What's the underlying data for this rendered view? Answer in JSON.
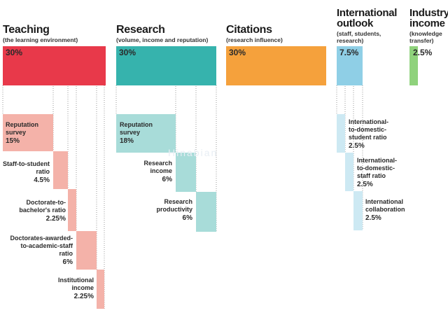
{
  "chart_data": {
    "type": "bar",
    "title": "",
    "pillars": [
      {
        "name": "Teaching",
        "desc": "(the learning environment)",
        "weight": "30%",
        "color": "#e8394a",
        "components": [
          {
            "label": "Reputation survey",
            "value": "15%"
          },
          {
            "label": "Staff-to-student ratio",
            "value": "4.5%"
          },
          {
            "label": "Doctorate-to-bachelor's ratio",
            "value": "2.25%"
          },
          {
            "label": "Doctorates-awarded-to-academic-staff ratio",
            "value": "6%"
          },
          {
            "label": "Institutional income",
            "value": "2.25%"
          }
        ]
      },
      {
        "name": "Research",
        "desc": "(volume, income and reputation)",
        "weight": "30%",
        "color": "#36b3ad",
        "components": [
          {
            "label": "Reputation survey",
            "value": "18%"
          },
          {
            "label": "Research income",
            "value": "6%"
          },
          {
            "label": "Research productivity",
            "value": "6%"
          }
        ]
      },
      {
        "name": "Citations",
        "desc": "(research influence)",
        "weight": "30%",
        "color": "#f5a13c",
        "components": []
      },
      {
        "name": "International outlook",
        "desc": "(staff, students, research)",
        "weight": "7.5%",
        "color": "#8fcfe6",
        "components": [
          {
            "label": "International-to-domestic-student ratio",
            "value": "2.5%"
          },
          {
            "label": "International-to-domestic-staff ratio",
            "value": "2.5%"
          },
          {
            "label": "International collaboration",
            "value": "2.5%"
          }
        ]
      },
      {
        "name": "Industry income",
        "desc": "(knowledge transfer)",
        "weight": "2.5%",
        "color": "#8fd27c",
        "components": []
      }
    ]
  },
  "text": {
    "teaching": {
      "title": "Teaching",
      "desc": "(the learning environment)",
      "weight": "30%",
      "c1": {
        "l1": "Reputation",
        "l2": "survey",
        "v": "15%"
      },
      "c2": {
        "l1": "Staff-to-student",
        "l2": "ratio",
        "v": "4.5%"
      },
      "c3": {
        "l1": "Doctorate-to-",
        "l2": "bachelor's ratio",
        "v": "2.25%"
      },
      "c4": {
        "l1": "Doctorates-awarded-",
        "l2": "to-academic-staff",
        "l3": "ratio",
        "v": "6%"
      },
      "c5": {
        "l1": "Institutional",
        "l2": "income",
        "v": "2.25%"
      }
    },
    "research": {
      "title": "Research",
      "desc": "(volume, income and reputation)",
      "weight": "30%",
      "c1": {
        "l1": "Reputation",
        "l2": "survey",
        "v": "18%"
      },
      "c2": {
        "l1": "Research",
        "l2": "income",
        "v": "6%"
      },
      "c3": {
        "l1": "Research",
        "l2": "productivity",
        "v": "6%"
      }
    },
    "citations": {
      "title": "Citations",
      "desc": "(research influence)",
      "weight": "30%"
    },
    "intl": {
      "t1": "International",
      "t2": "outlook",
      "d1": "(staff, students,",
      "d2": "research)",
      "weight": "7.5%",
      "c1": {
        "l1": "International-",
        "l2": "to-domestic-",
        "l3": "student ratio",
        "v": "2.5%"
      },
      "c2": {
        "l1": "International-",
        "l2": "to-domestic-",
        "l3": "staff ratio",
        "v": "2.5%"
      },
      "c3": {
        "l1": "International",
        "l2": "collaboration",
        "v": "2.5%"
      }
    },
    "industry": {
      "t1": "Industry",
      "t2": "income",
      "d1": "(knowledge",
      "d2": "transfer)",
      "weight": "2.5%"
    },
    "watermark": "Hinabian"
  }
}
